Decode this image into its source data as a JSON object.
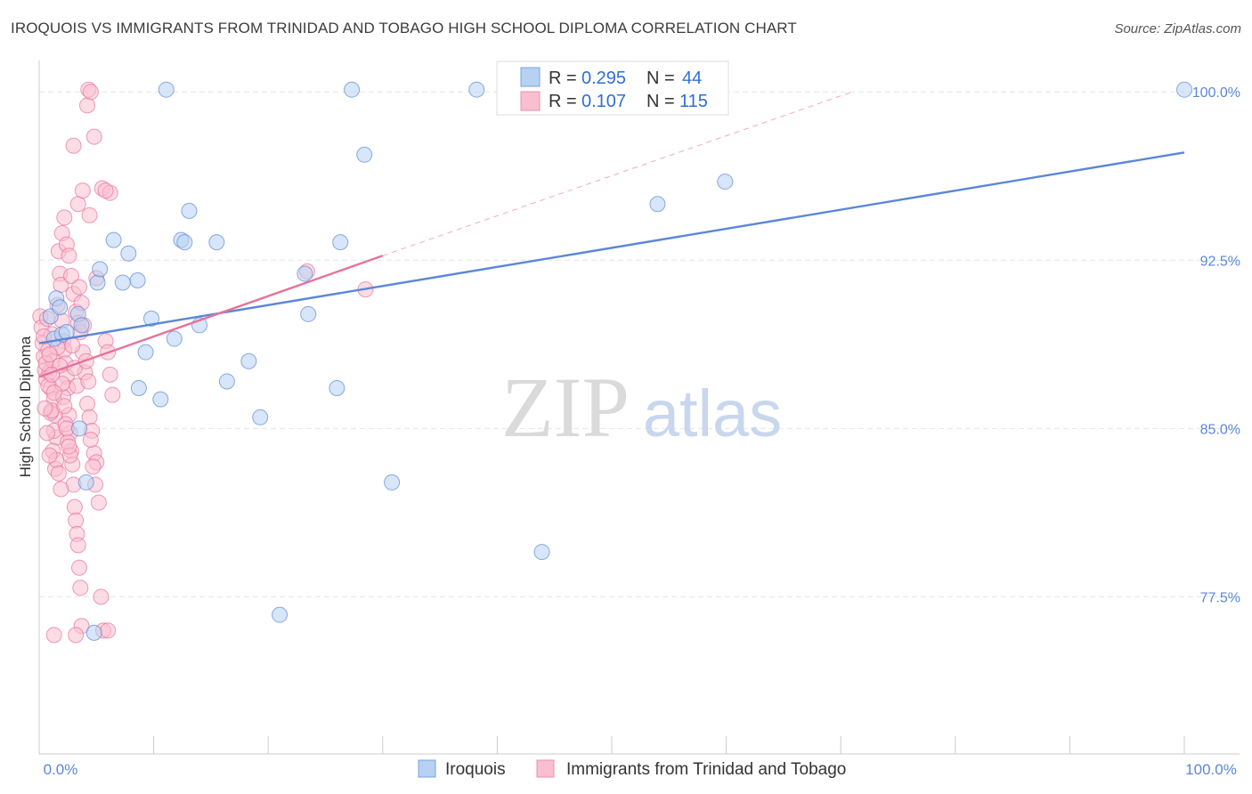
{
  "title": "IROQUOIS VS IMMIGRANTS FROM TRINIDAD AND TOBAGO HIGH SCHOOL DIPLOMA CORRELATION CHART",
  "source": "Source: ZipAtlas.com",
  "watermark": {
    "zip": "ZIP",
    "atlas": "atlas"
  },
  "legend": {
    "r_label": "R =",
    "n_label": "N =",
    "rows": [
      {
        "r": "0.295",
        "n": "44",
        "color": "#b7d1f3"
      },
      {
        "r": "0.107",
        "n": "115",
        "color": "#f9bfd0"
      }
    ]
  },
  "chart_data": {
    "type": "scatter",
    "title": "IROQUOIS VS IMMIGRANTS FROM TRINIDAD AND TOBAGO HIGH SCHOOL DIPLOMA CORRELATION CHART",
    "xlabel": "",
    "ylabel": "High School Diploma",
    "xlim": [
      0,
      100
    ],
    "ylim": [
      70.5,
      101
    ],
    "x_tick_labels": [
      "0.0%",
      "100.0%"
    ],
    "y_ticks": [
      77.5,
      85.0,
      92.5,
      100.0
    ],
    "y_tick_labels": [
      "77.5%",
      "85.0%",
      "92.5%",
      "100.0%"
    ],
    "grid": true,
    "series": [
      {
        "name": "Iroquois",
        "color": "#5b87d6",
        "fill": "#b7d1f3",
        "points": [
          [
            1.0,
            90.0
          ],
          [
            1.3,
            89.0
          ],
          [
            1.5,
            90.8
          ],
          [
            1.8,
            90.4
          ],
          [
            2.0,
            89.2
          ],
          [
            3.4,
            90.1
          ],
          [
            3.7,
            89.6
          ],
          [
            3.5,
            85.0
          ],
          [
            4.1,
            82.6
          ],
          [
            5.1,
            91.5
          ],
          [
            5.3,
            92.1
          ],
          [
            6.5,
            93.4
          ],
          [
            7.3,
            91.5
          ],
          [
            7.8,
            92.8
          ],
          [
            8.6,
            91.6
          ],
          [
            8.7,
            86.8
          ],
          [
            9.3,
            88.4
          ],
          [
            9.8,
            89.9
          ],
          [
            10.6,
            86.3
          ],
          [
            11.1,
            100.1
          ],
          [
            11.8,
            89.0
          ],
          [
            12.4,
            93.4
          ],
          [
            12.7,
            93.3
          ],
          [
            13.1,
            94.7
          ],
          [
            14.0,
            89.6
          ],
          [
            15.5,
            93.3
          ],
          [
            16.4,
            87.1
          ],
          [
            18.3,
            88.0
          ],
          [
            19.3,
            85.5
          ],
          [
            21.0,
            76.7
          ],
          [
            23.2,
            91.9
          ],
          [
            23.5,
            90.1
          ],
          [
            26.0,
            86.8
          ],
          [
            26.3,
            93.3
          ],
          [
            27.3,
            100.1
          ],
          [
            28.4,
            97.2
          ],
          [
            30.8,
            82.6
          ],
          [
            38.2,
            100.1
          ],
          [
            43.9,
            79.5
          ],
          [
            54.0,
            95.0
          ],
          [
            59.9,
            96.0
          ],
          [
            100.0,
            100.1
          ],
          [
            4.8,
            75.9
          ],
          [
            2.4,
            89.3
          ]
        ],
        "trend": {
          "x": [
            0,
            100
          ],
          "y": [
            88.8,
            97.3
          ]
        }
      },
      {
        "name": "Immigrants from Trinidad and Tobago",
        "color": "#e7729b",
        "fill": "#f9bfd0",
        "points": [
          [
            0.1,
            90.0
          ],
          [
            0.2,
            89.5
          ],
          [
            0.3,
            88.8
          ],
          [
            0.4,
            88.2
          ],
          [
            0.5,
            87.6
          ],
          [
            0.6,
            87.2
          ],
          [
            0.7,
            89.9
          ],
          [
            0.8,
            88.5
          ],
          [
            0.9,
            87.5
          ],
          [
            1.0,
            86.8
          ],
          [
            1.1,
            89.2
          ],
          [
            1.2,
            88.0
          ],
          [
            1.3,
            86.3
          ],
          [
            1.4,
            85.6
          ],
          [
            1.5,
            84.6
          ],
          [
            1.0,
            85.7
          ],
          [
            1.2,
            84.0
          ],
          [
            1.4,
            83.2
          ],
          [
            1.6,
            90.5
          ],
          [
            1.7,
            92.9
          ],
          [
            1.8,
            91.9
          ],
          [
            1.9,
            91.4
          ],
          [
            2.0,
            89.8
          ],
          [
            2.1,
            88.9
          ],
          [
            2.2,
            88.5
          ],
          [
            2.3,
            87.9
          ],
          [
            2.4,
            87.3
          ],
          [
            2.5,
            86.8
          ],
          [
            2.6,
            85.6
          ],
          [
            2.7,
            84.8
          ],
          [
            2.8,
            84.0
          ],
          [
            2.9,
            83.4
          ],
          [
            3.0,
            82.5
          ],
          [
            3.1,
            81.5
          ],
          [
            3.2,
            80.9
          ],
          [
            3.3,
            80.3
          ],
          [
            3.4,
            79.8
          ],
          [
            3.5,
            78.8
          ],
          [
            3.6,
            77.9
          ],
          [
            3.7,
            76.2
          ],
          [
            2.0,
            93.7
          ],
          [
            2.2,
            94.4
          ],
          [
            2.4,
            93.2
          ],
          [
            2.6,
            92.7
          ],
          [
            2.8,
            91.8
          ],
          [
            3.0,
            91.0
          ],
          [
            3.2,
            90.2
          ],
          [
            3.4,
            89.7
          ],
          [
            3.6,
            89.3
          ],
          [
            3.8,
            88.4
          ],
          [
            4.0,
            87.5
          ],
          [
            4.2,
            86.1
          ],
          [
            4.4,
            85.5
          ],
          [
            4.6,
            84.9
          ],
          [
            4.8,
            83.9
          ],
          [
            5.0,
            83.5
          ],
          [
            5.2,
            81.7
          ],
          [
            5.4,
            77.5
          ],
          [
            5.6,
            76.0
          ],
          [
            5.8,
            88.9
          ],
          [
            6.0,
            88.4
          ],
          [
            6.2,
            87.4
          ],
          [
            6.4,
            86.5
          ],
          [
            3.0,
            97.6
          ],
          [
            3.4,
            95.0
          ],
          [
            3.8,
            95.6
          ],
          [
            4.2,
            99.4
          ],
          [
            4.3,
            100.1
          ],
          [
            4.5,
            100.0
          ],
          [
            4.8,
            98.0
          ],
          [
            5.5,
            95.7
          ],
          [
            6.2,
            95.5
          ],
          [
            5.8,
            95.6
          ],
          [
            6.0,
            76.0
          ],
          [
            3.2,
            75.8
          ],
          [
            1.3,
            75.8
          ],
          [
            0.4,
            89.1
          ],
          [
            0.6,
            87.9
          ],
          [
            0.8,
            86.9
          ],
          [
            1.1,
            85.8
          ],
          [
            1.3,
            84.9
          ],
          [
            1.5,
            83.6
          ],
          [
            1.7,
            83.0
          ],
          [
            1.9,
            82.3
          ],
          [
            2.1,
            86.4
          ],
          [
            2.3,
            85.2
          ],
          [
            2.5,
            84.4
          ],
          [
            2.7,
            83.8
          ],
          [
            2.9,
            88.7
          ],
          [
            3.1,
            87.7
          ],
          [
            3.3,
            86.9
          ],
          [
            3.5,
            91.3
          ],
          [
            3.7,
            90.6
          ],
          [
            3.9,
            89.6
          ],
          [
            4.1,
            88.0
          ],
          [
            4.3,
            87.1
          ],
          [
            4.5,
            84.5
          ],
          [
            4.7,
            83.3
          ],
          [
            4.9,
            82.5
          ],
          [
            1.6,
            88.6
          ],
          [
            1.8,
            87.8
          ],
          [
            2.0,
            87.0
          ],
          [
            2.2,
            86.0
          ],
          [
            2.4,
            85.0
          ],
          [
            2.6,
            84.2
          ],
          [
            0.9,
            88.3
          ],
          [
            1.1,
            87.4
          ],
          [
            1.3,
            86.6
          ],
          [
            0.5,
            85.9
          ],
          [
            0.7,
            84.8
          ],
          [
            0.9,
            83.8
          ],
          [
            28.5,
            91.2
          ],
          [
            23.4,
            92.0
          ],
          [
            4.4,
            94.5
          ],
          [
            5.0,
            91.7
          ]
        ],
        "trend": {
          "x": [
            0,
            30
          ],
          "y": [
            87.3,
            92.7
          ]
        },
        "trend_extension": {
          "x": [
            30,
            71
          ],
          "y": [
            92.7,
            100.0
          ]
        }
      }
    ]
  }
}
